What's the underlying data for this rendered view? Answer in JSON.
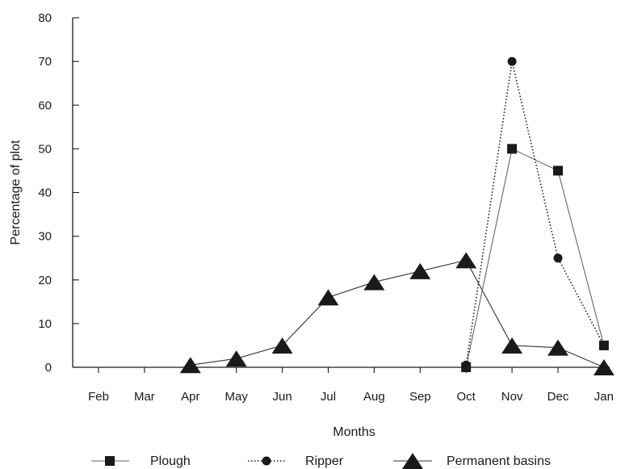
{
  "chart_data": {
    "type": "line",
    "xlabel": "Months",
    "ylabel": "Percentage of plot",
    "ylim": [
      0,
      80
    ],
    "yticks": [
      0,
      10,
      20,
      30,
      40,
      50,
      60,
      70,
      80
    ],
    "categories": [
      "Feb",
      "Mar",
      "Apr",
      "May",
      "Jun",
      "Jul",
      "Aug",
      "Sep",
      "Oct",
      "Nov",
      "Dec",
      "Jan"
    ],
    "grid": false,
    "legend_position": "bottom",
    "series": [
      {
        "name": "Plough",
        "marker": "square",
        "line_style": "solid",
        "x": [
          "Oct",
          "Nov",
          "Dec",
          "Jan"
        ],
        "values": [
          0,
          50,
          45,
          5
        ]
      },
      {
        "name": "Ripper",
        "marker": "circle",
        "line_style": "dotted",
        "x": [
          "Oct",
          "Nov",
          "Dec",
          "Jan"
        ],
        "values": [
          0.5,
          70,
          25,
          5
        ]
      },
      {
        "name": "Permanent basins",
        "marker": "triangle",
        "line_style": "solid",
        "x": [
          "Apr",
          "May",
          "Jun",
          "Jul",
          "Aug",
          "Sep",
          "Oct",
          "Nov",
          "Dec",
          "Jan"
        ],
        "values": [
          0.5,
          2,
          5,
          16,
          19.5,
          22,
          24.5,
          5,
          4.5,
          0
        ]
      }
    ]
  },
  "colors": {
    "ink": "#1a1a1a",
    "plough_line": "#666666",
    "ripper_line": "#1a1a1a",
    "basins_line": "#333333"
  }
}
